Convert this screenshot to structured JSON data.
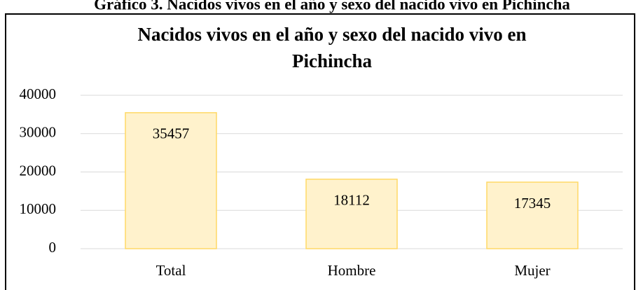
{
  "heading": "Gráfico 3. Nacidos vivos en el año y sexo del nacido vivo en Pichincha",
  "chart_data": {
    "type": "bar",
    "title": [
      "Nacidos vivos en el año y sexo del nacido vivo en",
      "Pichincha"
    ],
    "categories": [
      "Total",
      "Hombre",
      "Mujer"
    ],
    "values": [
      35457,
      18112,
      17345
    ],
    "color": "#fff2cc",
    "edge_color": "#ffd966",
    "ylim": [
      0,
      40000
    ],
    "yticks": [
      0,
      10000,
      20000,
      30000,
      40000
    ],
    "grid": true
  }
}
